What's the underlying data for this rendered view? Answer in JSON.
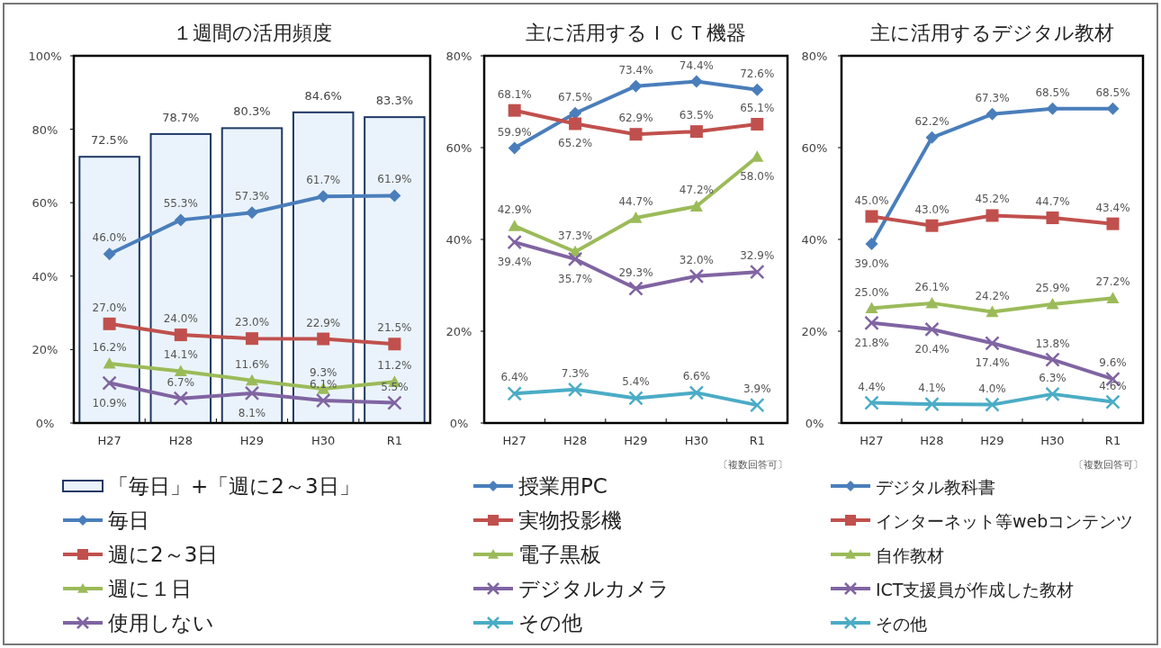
{
  "chart_data": [
    {
      "type": "line",
      "title": "１週間の活用頻度",
      "categories": [
        "H27",
        "H28",
        "H29",
        "H30",
        "R1"
      ],
      "ylim": [
        0,
        100
      ],
      "yticks": [
        {
          "value": 0,
          "label": "0%"
        },
        {
          "value": 20,
          "label": "20%"
        },
        {
          "value": 40,
          "label": "40%"
        },
        {
          "value": 60,
          "label": "60%"
        },
        {
          "value": 80,
          "label": "80%"
        },
        {
          "value": 100,
          "label": "100%"
        }
      ],
      "legend": "bottom",
      "grid": false,
      "series": [
        {
          "name": "「毎日」+「週に2～3日」",
          "type": "bar",
          "color": "#eaf3fb",
          "values": [
            72.5,
            78.7,
            80.3,
            84.6,
            83.3
          ],
          "value_labels": [
            "72.5%",
            "78.7%",
            "80.3%",
            "84.6%",
            "83.3%"
          ]
        },
        {
          "name": "毎日",
          "color": "#4a7ebb",
          "marker": "diamond",
          "values": [
            46.0,
            55.3,
            57.3,
            61.7,
            61.9
          ],
          "value_labels": [
            "46.0%",
            "55.3%",
            "57.3%",
            "61.7%",
            "61.9%"
          ]
        },
        {
          "name": "週に2～3日",
          "color": "#c0504d",
          "marker": "square",
          "values": [
            27.0,
            24.0,
            23.0,
            22.9,
            21.5
          ],
          "value_labels": [
            "27.0%",
            "24.0%",
            "23.0%",
            "22.9%",
            "21.5%"
          ]
        },
        {
          "name": "週に１日",
          "color": "#9bbb59",
          "marker": "triangle",
          "values": [
            16.2,
            14.1,
            11.6,
            9.3,
            11.2
          ],
          "value_labels": [
            "16.2%",
            "14.1%",
            "11.6%",
            "9.3%",
            "11.2%"
          ]
        },
        {
          "name": "使用しない",
          "color": "#8064a2",
          "marker": "cross",
          "values": [
            10.9,
            6.7,
            8.1,
            6.1,
            5.5
          ],
          "value_labels": [
            "10.9%",
            "6.7%",
            "8.1%",
            "6.1%",
            "5.5%"
          ]
        }
      ]
    },
    {
      "type": "line",
      "title": "主に活用するＩＣＴ機器",
      "categories": [
        "H27",
        "H28",
        "H29",
        "H30",
        "R1"
      ],
      "ylim": [
        0,
        80
      ],
      "yticks": [
        {
          "value": 0,
          "label": "0%"
        },
        {
          "value": 20,
          "label": "20%"
        },
        {
          "value": 40,
          "label": "40%"
        },
        {
          "value": 60,
          "label": "60%"
        },
        {
          "value": 80,
          "label": "80%"
        }
      ],
      "legend": "bottom",
      "grid": false,
      "annotations": [
        "〔複数回答可〕"
      ],
      "series": [
        {
          "name": "授業用PC",
          "color": "#4a7ebb",
          "marker": "diamond",
          "values": [
            59.9,
            67.5,
            73.4,
            74.4,
            72.6
          ],
          "value_labels": [
            "59.9%",
            "67.5%",
            "73.4%",
            "74.4%",
            "72.6%"
          ]
        },
        {
          "name": "実物投影機",
          "color": "#c0504d",
          "marker": "square",
          "values": [
            68.1,
            65.2,
            62.9,
            63.5,
            65.1
          ],
          "value_labels": [
            "68.1%",
            "65.2%",
            "62.9%",
            "63.5%",
            "65.1%"
          ]
        },
        {
          "name": "電子黒板",
          "color": "#9bbb59",
          "marker": "triangle",
          "values": [
            42.9,
            37.3,
            44.7,
            47.2,
            58.0
          ],
          "value_labels": [
            "42.9%",
            "37.3%",
            "44.7%",
            "47.2%",
            "58.0%"
          ]
        },
        {
          "name": "デジタルカメラ",
          "color": "#8064a2",
          "marker": "cross",
          "values": [
            39.4,
            35.7,
            29.3,
            32.0,
            32.9
          ],
          "value_labels": [
            "39.4%",
            "35.7%",
            "29.3%",
            "32.0%",
            "32.9%"
          ]
        },
        {
          "name": "その他",
          "color": "#4bacc6",
          "marker": "cross",
          "values": [
            6.4,
            7.3,
            5.4,
            6.6,
            3.9
          ],
          "value_labels": [
            "6.4%",
            "7.3%",
            "5.4%",
            "6.6%",
            "3.9%"
          ]
        }
      ]
    },
    {
      "type": "line",
      "title": "主に活用するデジタル教材",
      "categories": [
        "H27",
        "H28",
        "H29",
        "H30",
        "R1"
      ],
      "ylim": [
        0,
        80
      ],
      "yticks": [
        {
          "value": 0,
          "label": "0%"
        },
        {
          "value": 20,
          "label": "20%"
        },
        {
          "value": 40,
          "label": "40%"
        },
        {
          "value": 60,
          "label": "60%"
        },
        {
          "value": 80,
          "label": "80%"
        }
      ],
      "legend": "bottom",
      "grid": false,
      "annotations": [
        "〔複数回答可〕"
      ],
      "series": [
        {
          "name": "デジタル教科書",
          "color": "#4a7ebb",
          "marker": "diamond",
          "values": [
            39.0,
            62.2,
            67.3,
            68.5,
            68.5
          ],
          "value_labels": [
            "39.0%",
            "62.2%",
            "67.3%",
            "68.5%",
            "68.5%"
          ]
        },
        {
          "name": "インターネット等webコンテンツ",
          "color": "#c0504d",
          "marker": "square",
          "values": [
            45.0,
            43.0,
            45.2,
            44.7,
            43.4
          ],
          "value_labels": [
            "45.0%",
            "43.0%",
            "45.2%",
            "44.7%",
            "43.4%"
          ]
        },
        {
          "name": "自作教材",
          "color": "#9bbb59",
          "marker": "triangle",
          "values": [
            25.0,
            26.1,
            24.2,
            25.9,
            27.2
          ],
          "value_labels": [
            "25.0%",
            "26.1%",
            "24.2%",
            "25.9%",
            "27.2%"
          ]
        },
        {
          "name": "ICT支援員が作成した教材",
          "color": "#8064a2",
          "marker": "cross",
          "values": [
            21.8,
            20.4,
            17.4,
            13.8,
            9.6
          ],
          "value_labels": [
            "21.8%",
            "20.4%",
            "17.4%",
            "13.8%",
            "9.6%"
          ]
        },
        {
          "name": "その他",
          "color": "#4bacc6",
          "marker": "cross",
          "values": [
            4.4,
            4.1,
            4.0,
            6.3,
            4.6
          ],
          "value_labels": [
            "4.4%",
            "4.1%",
            "4.0%",
            "6.3%",
            "4.6%"
          ]
        }
      ]
    }
  ]
}
